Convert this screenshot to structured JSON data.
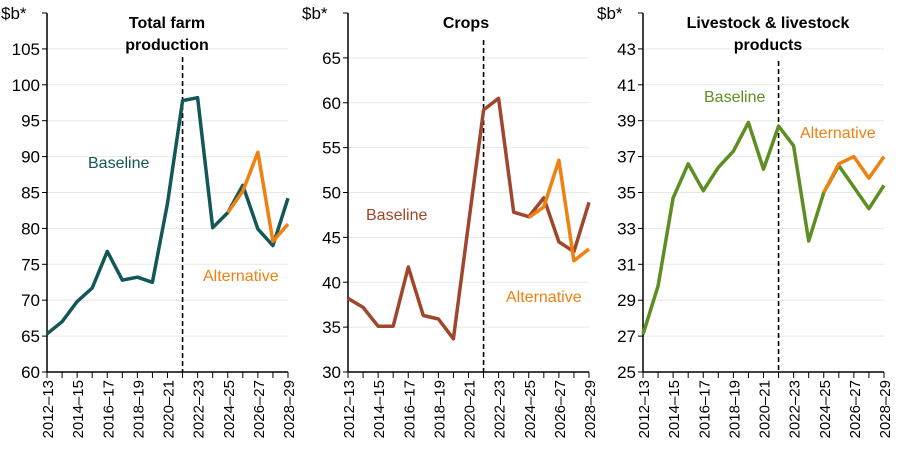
{
  "chart_data": [
    {
      "type": "line",
      "title": "Total farm production",
      "ylabel": "$b*",
      "ylim": [
        60,
        110
      ],
      "yticks": [
        60,
        65,
        70,
        75,
        80,
        85,
        90,
        95,
        100,
        105
      ],
      "grid": true,
      "categories": [
        "2012–13",
        "2013–14",
        "2014–15",
        "2015–16",
        "2016–17",
        "2017–18",
        "2018–19",
        "2019–20",
        "2020–21",
        "2021–22",
        "2022–23",
        "2023–24",
        "2024–25",
        "2025–26",
        "2026–27",
        "2027–28",
        "2028–29"
      ],
      "divider_category": "2021–22",
      "series": [
        {
          "name": "Baseline",
          "color": "#145757",
          "values": [
            65.3,
            67.0,
            69.8,
            71.7,
            76.8,
            72.8,
            73.2,
            72.5,
            83.5,
            97.8,
            98.2,
            80.1,
            82.2,
            86.0,
            79.9,
            77.6,
            84.2
          ]
        },
        {
          "name": "Alternative",
          "color": "#f08010",
          "values": [
            null,
            null,
            null,
            null,
            null,
            null,
            null,
            null,
            null,
            null,
            null,
            null,
            82.2,
            85.2,
            90.6,
            78.2,
            80.6
          ]
        }
      ]
    },
    {
      "type": "line",
      "title": "Crops",
      "ylabel": "$b*",
      "ylim": [
        30,
        70
      ],
      "yticks": [
        30,
        35,
        40,
        45,
        50,
        55,
        60,
        65
      ],
      "grid": true,
      "categories": [
        "2012–13",
        "2013–14",
        "2014–15",
        "2015–16",
        "2016–17",
        "2017–18",
        "2018–19",
        "2019–20",
        "2020–21",
        "2021–22",
        "2022–23",
        "2023–24",
        "2024–25",
        "2025–26",
        "2026–27",
        "2027–28",
        "2028–29"
      ],
      "divider_category": "2021–22",
      "series": [
        {
          "name": "Baseline",
          "color": "#a0462c",
          "values": [
            38.2,
            37.2,
            35.1,
            35.1,
            41.7,
            36.3,
            35.9,
            33.7,
            46.5,
            59.2,
            60.5,
            47.8,
            47.3,
            49.4,
            44.5,
            43.4,
            48.9
          ]
        },
        {
          "name": "Alternative",
          "color": "#f08010",
          "values": [
            null,
            null,
            null,
            null,
            null,
            null,
            null,
            null,
            null,
            null,
            null,
            null,
            47.2,
            48.4,
            53.6,
            42.4,
            43.7
          ]
        }
      ]
    },
    {
      "type": "line",
      "title": "Livestock & livestock products",
      "ylabel": "$b*",
      "ylim": [
        25,
        45
      ],
      "yticks": [
        25,
        27,
        29,
        31,
        33,
        35,
        37,
        39,
        41,
        43
      ],
      "grid": true,
      "categories": [
        "2012–13",
        "2013–14",
        "2014–15",
        "2015–16",
        "2016–17",
        "2017–18",
        "2018–19",
        "2019–20",
        "2020–21",
        "2021–22",
        "2022–23",
        "2023–24",
        "2024–25",
        "2025–26",
        "2026–27",
        "2027–28",
        "2028–29"
      ],
      "divider_category": "2021–22",
      "series": [
        {
          "name": "Baseline",
          "color": "#5e8e22",
          "values": [
            27.1,
            29.8,
            34.7,
            36.6,
            35.1,
            36.4,
            37.3,
            38.9,
            36.3,
            38.7,
            37.6,
            32.3,
            35.0,
            36.5,
            35.3,
            34.1,
            35.4
          ]
        },
        {
          "name": "Alternative",
          "color": "#f08010",
          "values": [
            null,
            null,
            null,
            null,
            null,
            null,
            null,
            null,
            null,
            null,
            null,
            null,
            35.0,
            36.6,
            37.0,
            35.8,
            37.0
          ]
        }
      ]
    }
  ]
}
